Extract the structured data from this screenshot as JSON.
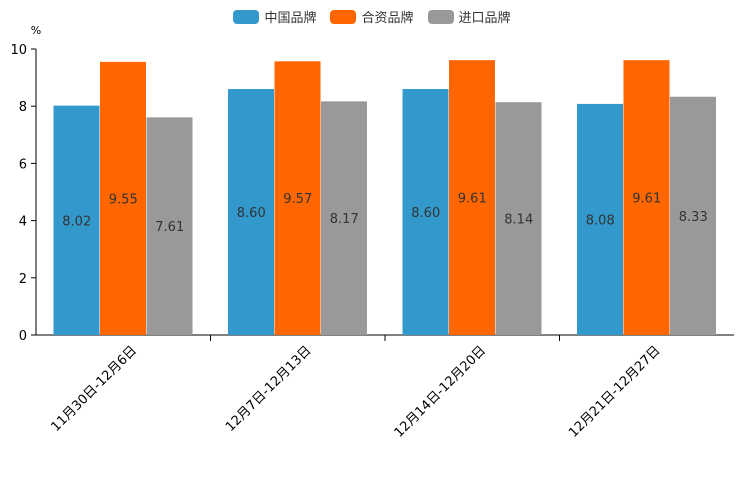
{
  "chart_data": {
    "type": "bar",
    "title": "",
    "xlabel": "",
    "ylabel": "%",
    "ylim": [
      0,
      10
    ],
    "yticks": [
      "0",
      "2",
      "4",
      "6",
      "8",
      "10"
    ],
    "categories": [
      "11月30日-12月6日",
      "12月7日-12月13日",
      "12月14日-12月20日",
      "12月21日-12月27日"
    ],
    "series": [
      {
        "name": "中国品牌",
        "color": "#3399cc",
        "values": [
          8.02,
          8.6,
          8.6,
          8.08
        ],
        "labels": [
          "8.02",
          "8.60",
          "8.60",
          "8.08"
        ]
      },
      {
        "name": "合资品牌",
        "color": "#ff6600",
        "values": [
          9.55,
          9.57,
          9.61,
          9.61
        ],
        "labels": [
          "9.55",
          "9.57",
          "9.61",
          "9.61"
        ]
      },
      {
        "name": "进口品牌",
        "color": "#999999",
        "values": [
          7.61,
          8.17,
          8.14,
          8.33
        ],
        "labels": [
          "7.61",
          "8.17",
          "8.14",
          "8.33"
        ]
      }
    ],
    "legend_position": "top-center",
    "grid": false
  }
}
